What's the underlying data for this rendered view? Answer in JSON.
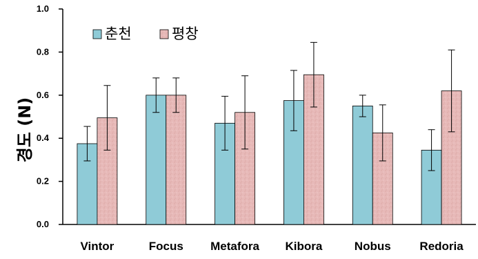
{
  "chart_data": {
    "type": "bar",
    "title": "",
    "xlabel": "",
    "ylabel": "경도 (N)",
    "ylim": [
      0,
      1.0
    ],
    "yticks": [
      "0.0",
      "0.2",
      "0.4",
      "0.6",
      "0.8",
      "1.0"
    ],
    "grid": false,
    "legend_position": "top-left",
    "categories": [
      "Vintor",
      "Focus",
      "Metafora",
      "Kibora",
      "Nobus",
      "Redoria"
    ],
    "series": [
      {
        "name": "춘천",
        "color": "#8fcbd7",
        "values": [
          0.375,
          0.6,
          0.47,
          0.575,
          0.55,
          0.345
        ],
        "error": [
          0.08,
          0.08,
          0.125,
          0.14,
          0.05,
          0.095
        ]
      },
      {
        "name": "평창",
        "color": "#e7b9b8",
        "values": [
          0.495,
          0.6,
          0.52,
          0.695,
          0.425,
          0.62
        ],
        "error": [
          0.15,
          0.08,
          0.17,
          0.15,
          0.13,
          0.19
        ]
      }
    ]
  }
}
